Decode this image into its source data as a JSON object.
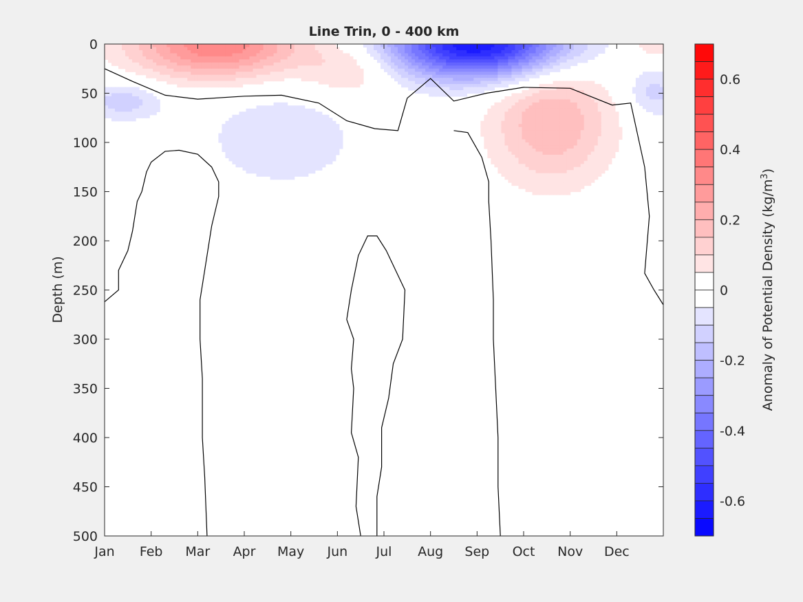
{
  "chart_data": {
    "type": "heatmap",
    "title": "Line Trin, 0 - 400 km",
    "xlabel": "",
    "ylabel": "Depth (m)",
    "x_ticks": [
      "Jan",
      "Feb",
      "Mar",
      "Apr",
      "May",
      "Jun",
      "Jul",
      "Aug",
      "Sep",
      "Oct",
      "Nov",
      "Dec"
    ],
    "xlim": [
      0,
      12
    ],
    "y_ticks": [
      0,
      50,
      100,
      150,
      200,
      250,
      300,
      350,
      400,
      450,
      500
    ],
    "ylim": [
      0,
      500
    ],
    "y_reversed": true,
    "colorbar": {
      "label_main": "Anomaly of Potential Density (kg/m",
      "label_exp": "3",
      "label_end": ")",
      "range": [
        -0.7,
        0.7
      ],
      "step": 0.05,
      "ticks": [
        "0.6",
        "0.4",
        "0.2",
        "0",
        "-0.2",
        "-0.4",
        "-0.6"
      ],
      "tick_values": [
        0.6,
        0.4,
        0.2,
        0,
        -0.2,
        -0.4,
        -0.6
      ],
      "positive_color": "#ff0000",
      "negative_color": "#0000ff",
      "neutral_color": "#ffffff"
    },
    "anomaly_features": [
      {
        "sign": "positive",
        "month_center": 2.4,
        "depth_center": 0,
        "peak": 0.35,
        "month_halfwidth": 1.8,
        "depth_halfwidth": 35
      },
      {
        "sign": "positive",
        "month_center": 5.3,
        "depth_center": 25,
        "peak": 0.12,
        "month_halfwidth": 1.0,
        "depth_halfwidth": 30
      },
      {
        "sign": "negative",
        "month_center": 0.4,
        "depth_center": 58,
        "peak": -0.13,
        "month_halfwidth": 0.9,
        "depth_halfwidth": 20
      },
      {
        "sign": "negative",
        "month_center": 3.8,
        "depth_center": 95,
        "peak": -0.1,
        "month_halfwidth": 1.6,
        "depth_halfwidth": 50
      },
      {
        "sign": "negative",
        "month_center": 8.0,
        "depth_center": 0,
        "peak": -0.65,
        "month_halfwidth": 1.9,
        "depth_halfwidth": 35
      },
      {
        "sign": "positive",
        "month_center": 9.6,
        "depth_center": 78,
        "peak": 0.2,
        "month_halfwidth": 1.3,
        "depth_halfwidth": 65
      },
      {
        "sign": "negative",
        "month_center": 11.8,
        "depth_center": 50,
        "peak": -0.12,
        "month_halfwidth": 0.6,
        "depth_halfwidth": 25
      },
      {
        "sign": "positive",
        "month_center": 11.8,
        "depth_center": 0,
        "peak": 0.1,
        "month_halfwidth": 0.5,
        "depth_halfwidth": 15
      }
    ],
    "zero_contours": [
      {
        "name": "surface-zero-line",
        "points": [
          [
            0,
            25
          ],
          [
            0.6,
            38
          ],
          [
            1.3,
            52
          ],
          [
            2.0,
            56
          ],
          [
            3.0,
            53
          ],
          [
            3.8,
            52
          ],
          [
            4.6,
            60
          ],
          [
            5.2,
            78
          ],
          [
            5.8,
            86
          ],
          [
            6.3,
            88
          ],
          [
            6.5,
            55
          ],
          [
            7.0,
            35
          ],
          [
            7.5,
            58
          ],
          [
            8.2,
            50
          ],
          [
            9.0,
            44
          ],
          [
            10.0,
            45
          ],
          [
            10.9,
            62
          ],
          [
            11.3,
            60
          ],
          [
            11.6,
            125
          ],
          [
            11.7,
            175
          ],
          [
            11.6,
            233
          ],
          [
            11.8,
            250
          ],
          [
            12.0,
            265
          ]
        ]
      },
      {
        "name": "west-zero-tongue",
        "points": [
          [
            0,
            262
          ],
          [
            0.3,
            250
          ],
          [
            0.3,
            230
          ],
          [
            0.5,
            210
          ],
          [
            0.6,
            190
          ],
          [
            0.7,
            160
          ],
          [
            0.8,
            150
          ],
          [
            0.9,
            130
          ],
          [
            1.0,
            120
          ],
          [
            1.3,
            109
          ],
          [
            1.6,
            108
          ],
          [
            2.0,
            112
          ],
          [
            2.3,
            125
          ],
          [
            2.45,
            140
          ],
          [
            2.45,
            155
          ],
          [
            2.3,
            185
          ],
          [
            2.15,
            230
          ],
          [
            2.05,
            260
          ],
          [
            2.05,
            300
          ],
          [
            2.1,
            340
          ],
          [
            2.1,
            400
          ],
          [
            2.15,
            440
          ],
          [
            2.2,
            500
          ]
        ]
      },
      {
        "name": "mid-zero-tongue",
        "points": [
          [
            5.5,
            500
          ],
          [
            5.4,
            470
          ],
          [
            5.45,
            420
          ],
          [
            5.3,
            395
          ],
          [
            5.35,
            350
          ],
          [
            5.3,
            330
          ],
          [
            5.35,
            300
          ],
          [
            5.2,
            280
          ],
          [
            5.3,
            250
          ],
          [
            5.45,
            215
          ],
          [
            5.65,
            195
          ],
          [
            5.85,
            195
          ],
          [
            6.05,
            210
          ],
          [
            6.45,
            250
          ],
          [
            6.4,
            300
          ],
          [
            6.2,
            325
          ],
          [
            6.1,
            360
          ],
          [
            5.95,
            390
          ],
          [
            5.95,
            430
          ],
          [
            5.85,
            460
          ],
          [
            5.85,
            500
          ]
        ]
      },
      {
        "name": "east-zero-tongue",
        "points": [
          [
            7.5,
            88
          ],
          [
            7.8,
            90
          ],
          [
            8.1,
            115
          ],
          [
            8.25,
            140
          ],
          [
            8.25,
            160
          ],
          [
            8.3,
            200
          ],
          [
            8.35,
            260
          ],
          [
            8.35,
            300
          ],
          [
            8.4,
            350
          ],
          [
            8.45,
            400
          ],
          [
            8.45,
            450
          ],
          [
            8.5,
            500
          ]
        ]
      }
    ]
  }
}
